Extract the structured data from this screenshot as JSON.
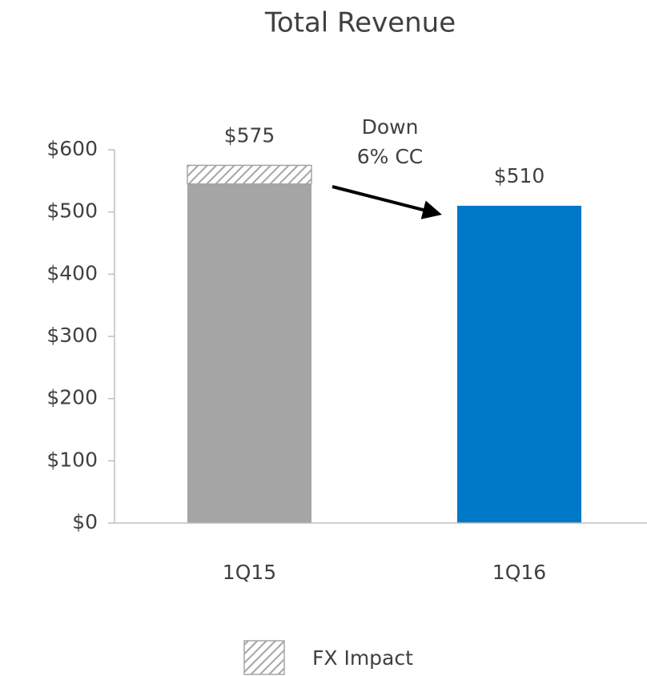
{
  "chart_data": {
    "type": "stacked_bar",
    "title": "Total Revenue",
    "categories": [
      "1Q15",
      "1Q16"
    ],
    "series": [
      {
        "colors": [
          "#a5a5a5",
          "#0078c8"
        ],
        "values": [
          545,
          510
        ]
      },
      {
        "name": "FX Impact",
        "color": "#a5a5a5",
        "pattern": "hatch",
        "values": [
          30,
          null
        ]
      }
    ],
    "total_labels": [
      "$575",
      "$510"
    ],
    "annotation": [
      "Down",
      "6% CC"
    ],
    "ylim": [
      0,
      600
    ],
    "yticks": [
      {
        "value": 0,
        "label": "$0"
      },
      {
        "value": 100,
        "label": "$100"
      },
      {
        "value": 200,
        "label": "$200"
      },
      {
        "value": 300,
        "label": "$300"
      },
      {
        "value": 400,
        "label": "$400"
      },
      {
        "value": 500,
        "label": "$500"
      },
      {
        "value": 600,
        "label": "$600"
      }
    ],
    "grid": false
  }
}
